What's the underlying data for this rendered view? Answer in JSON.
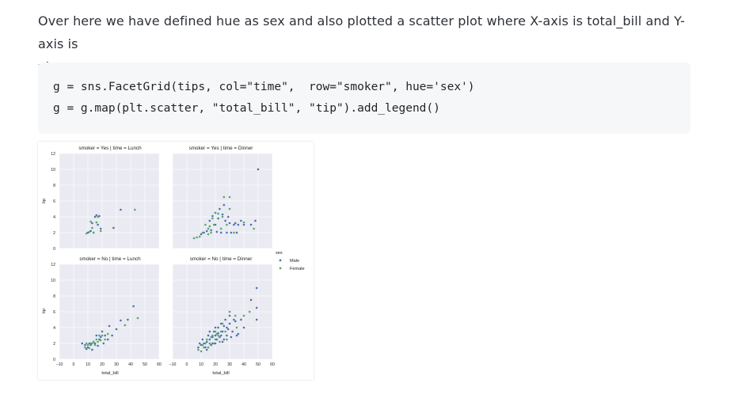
{
  "paragraph": {
    "line1": "Over here we have defined hue as sex and also plotted a scatter plot where X-axis is total_bill and Y-axis is",
    "line2": "yip.."
  },
  "code": {
    "lines": [
      "g = sns.FacetGrid(tips, col=\"time\",  row=\"smoker\", hue='sex')",
      "g = g.map(plt.scatter, \"total_bill\", \"tip\").add_legend()"
    ]
  },
  "colors": {
    "male": "#4c72b0",
    "female": "#55a868",
    "panel_bg": "#eaeaf2",
    "grid": "#ffffff"
  },
  "chart_data": {
    "type": "scatter",
    "xlabel": "total_bill",
    "ylabel": "tip",
    "xlim": [
      -10,
      60
    ],
    "ylim": [
      0,
      12
    ],
    "x_ticks": [
      "−10",
      "0",
      "10",
      "20",
      "30",
      "40",
      "50",
      "60"
    ],
    "y_ticks": [
      "0",
      "2",
      "4",
      "6",
      "8",
      "10",
      "12"
    ],
    "grid": true,
    "legend": {
      "title": "sex",
      "placement": "right",
      "entries": [
        "Male",
        "Female"
      ]
    },
    "panels": [
      {
        "title": "smoker = Yes | time = Lunch",
        "series": [
          {
            "name": "Male",
            "points": [
              [
                10,
                2.0
              ],
              [
                12,
                2.2
              ],
              [
                13,
                3.2
              ],
              [
                14,
                2.0
              ],
              [
                15,
                4.0
              ],
              [
                16,
                4.2
              ],
              [
                17,
                3.0
              ],
              [
                18,
                4.1
              ],
              [
                19,
                2.5
              ],
              [
                28,
                2.6
              ],
              [
                33,
                4.9
              ]
            ]
          },
          {
            "name": "Female",
            "points": [
              [
                9,
                1.9
              ],
              [
                11,
                2.1
              ],
              [
                12,
                3.4
              ],
              [
                13,
                2.6
              ],
              [
                14,
                2.0
              ],
              [
                16,
                3.3
              ],
              [
                17,
                4.0
              ],
              [
                19,
                2.2
              ],
              [
                43,
                4.9
              ]
            ]
          }
        ]
      },
      {
        "title": "smoker = Yes | time = Dinner",
        "series": [
          {
            "name": "Male",
            "points": [
              [
                50,
                10.0
              ],
              [
                26,
                5.5
              ],
              [
                25,
                4.3
              ],
              [
                20,
                4.5
              ],
              [
                22,
                3.8
              ],
              [
                30,
                3.2
              ],
              [
                33,
                3.0
              ],
              [
                17,
                2.3
              ],
              [
                14,
                2.2
              ],
              [
                12,
                2.0
              ],
              [
                10,
                1.8
              ],
              [
                16,
                3.5
              ],
              [
                21,
                2.1
              ],
              [
                24,
                2.0
              ],
              [
                28,
                2.0
              ],
              [
                31,
                2.0
              ],
              [
                35,
                2.0
              ],
              [
                38,
                3.5
              ],
              [
                40,
                3.0
              ],
              [
                45,
                3.0
              ],
              [
                29,
                4.0
              ],
              [
                20,
                3.0
              ],
              [
                18,
                4.1
              ],
              [
                27,
                3.5
              ],
              [
                23,
                5.0
              ],
              [
                34,
                3.2
              ],
              [
                36,
                3.0
              ],
              [
                48,
                3.5
              ]
            ]
          },
          {
            "name": "Female",
            "points": [
              [
                30,
                6.5
              ],
              [
                26,
                6.5
              ],
              [
                22,
                4.4
              ],
              [
                20,
                4.5
              ],
              [
                18,
                3.8
              ],
              [
                13,
                3.0
              ],
              [
                15,
                2.5
              ],
              [
                17,
                2.0
              ],
              [
                11,
                2.0
              ],
              [
                9,
                1.5
              ],
              [
                7,
                1.4
              ],
              [
                5,
                1.3
              ],
              [
                28,
                3.0
              ],
              [
                24,
                2.5
              ],
              [
                30,
                5.0
              ],
              [
                47,
                2.5
              ],
              [
                16,
                2.8
              ],
              [
                19,
                3.0
              ],
              [
                33,
                2.0
              ],
              [
                40,
                3.3
              ],
              [
                25,
                4.0
              ],
              [
                15,
                1.8
              ]
            ]
          }
        ]
      },
      {
        "title": "smoker = No | time = Lunch",
        "series": [
          {
            "name": "Male",
            "points": [
              [
                42,
                6.7
              ],
              [
                38,
                5.0
              ],
              [
                33,
                4.9
              ],
              [
                30,
                3.8
              ],
              [
                25,
                4.2
              ],
              [
                22,
                3.0
              ],
              [
                20,
                3.5
              ],
              [
                18,
                2.5
              ],
              [
                15,
                2.0
              ],
              [
                12,
                1.8
              ],
              [
                10,
                1.5
              ],
              [
                8,
                1.8
              ],
              [
                14,
                2.2
              ],
              [
                16,
                3.0
              ],
              [
                27,
                3.0
              ],
              [
                24,
                2.5
              ],
              [
                6,
                2.0
              ],
              [
                13,
                1.2
              ],
              [
                19,
                2.8
              ],
              [
                21,
                2.0
              ],
              [
                11,
                2.0
              ],
              [
                17,
                1.7
              ],
              [
                9,
                1.3
              ]
            ]
          },
          {
            "name": "Female",
            "points": [
              [
                45,
                5.2
              ],
              [
                36,
                4.3
              ],
              [
                24,
                3.2
              ],
              [
                20,
                3.0
              ],
              [
                18,
                3.0
              ],
              [
                16,
                2.5
              ],
              [
                14,
                2.2
              ],
              [
                12,
                2.0
              ],
              [
                10,
                1.8
              ],
              [
                8,
                1.5
              ],
              [
                15,
                1.8
              ],
              [
                13,
                2.0
              ],
              [
                11,
                1.4
              ],
              [
                17,
                2.2
              ],
              [
                19,
                2.4
              ],
              [
                9,
                2.0
              ],
              [
                22,
                2.5
              ]
            ]
          }
        ]
      },
      {
        "title": "smoker = No | time = Dinner",
        "series": [
          {
            "name": "Male",
            "points": [
              [
                49,
                9.0
              ],
              [
                49,
                6.5
              ],
              [
                45,
                7.5
              ],
              [
                49,
                5.0
              ],
              [
                38,
                5.0
              ],
              [
                34,
                4.8
              ],
              [
                30,
                5.5
              ],
              [
                28,
                4.0
              ],
              [
                25,
                3.5
              ],
              [
                24,
                3.0
              ],
              [
                22,
                3.3
              ],
              [
                20,
                3.0
              ],
              [
                18,
                2.8
              ],
              [
                16,
                2.5
              ],
              [
                14,
                2.2
              ],
              [
                12,
                2.0
              ],
              [
                10,
                1.8
              ],
              [
                8,
                1.5
              ],
              [
                26,
                4.2
              ],
              [
                30,
                4.5
              ],
              [
                32,
                3.5
              ],
              [
                35,
                3.0
              ],
              [
                20,
                2.0
              ],
              [
                15,
                3.0
              ],
              [
                22,
                4.0
              ],
              [
                28,
                3.0
              ],
              [
                18,
                2.0
              ],
              [
                13,
                1.5
              ],
              [
                11,
                2.5
              ],
              [
                16,
                3.5
              ],
              [
                24,
                4.5
              ],
              [
                27,
                5.0
              ],
              [
                19,
                3.5
              ],
              [
                21,
                2.5
              ],
              [
                23,
                2.8
              ],
              [
                17,
                1.8
              ],
              [
                25,
                2.2
              ],
              [
                29,
                3.8
              ],
              [
                31,
                2.8
              ],
              [
                14,
                1.2
              ],
              [
                9,
                2.0
              ],
              [
                33,
                5.0
              ],
              [
                36,
                3.2
              ],
              [
                40,
                4.0
              ],
              [
                20,
                4.0
              ],
              [
                26,
                2.5
              ]
            ]
          },
          {
            "name": "Female",
            "points": [
              [
                44,
                6.0
              ],
              [
                34,
                5.5
              ],
              [
                30,
                6.0
              ],
              [
                40,
                5.5
              ],
              [
                35,
                4.0
              ],
              [
                27,
                3.5
              ],
              [
                24,
                3.5
              ],
              [
                22,
                3.0
              ],
              [
                20,
                2.5
              ],
              [
                18,
                3.0
              ],
              [
                16,
                2.0
              ],
              [
                14,
                2.5
              ],
              [
                12,
                1.5
              ],
              [
                10,
                1.0
              ],
              [
                8,
                1.2
              ],
              [
                25,
                4.5
              ],
              [
                28,
                2.5
              ],
              [
                20,
                3.5
              ],
              [
                17,
                2.8
              ],
              [
                13,
                2.0
              ],
              [
                11,
                1.8
              ],
              [
                15,
                1.5
              ],
              [
                23,
                2.2
              ],
              [
                19,
                2.0
              ],
              [
                21,
                3.2
              ]
            ]
          }
        ]
      }
    ]
  }
}
